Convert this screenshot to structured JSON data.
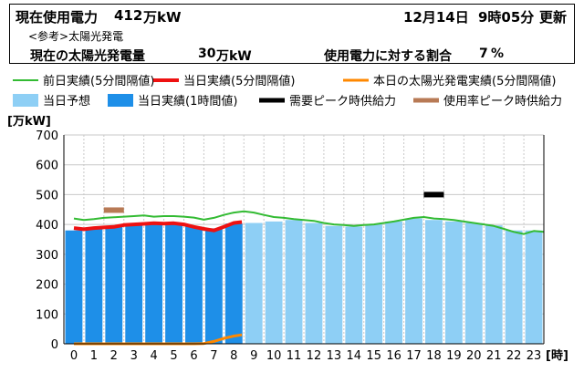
{
  "header": {
    "current_label": "現在使用電力",
    "current_value": "412",
    "current_unit": "万kW",
    "date": "12月14日",
    "time": "9時05分",
    "update_label": "更新",
    "reference_label": "<参考>太陽光発電",
    "solar_label": "現在の太陽光発電量",
    "solar_value": "30",
    "solar_unit": "万kW",
    "ratio_label": "使用電力に対する割合",
    "ratio_value": "7",
    "ratio_unit": "%"
  },
  "colors": {
    "prev_day": "#33bb33",
    "today_5min": "#ee1111",
    "solar": "#ff8800",
    "forecast": "#8ecff5",
    "today_hourly": "#1e8fe8",
    "peak_supply": "#000000",
    "usage_peak_supply": "#b87a55"
  },
  "chart_data": {
    "type": "bar",
    "xlabel": "[時]",
    "ylabel": "[万kW]",
    "ylim": [
      0,
      700
    ],
    "yticks": [
      0,
      100,
      200,
      300,
      400,
      500,
      600,
      700
    ],
    "grid": true,
    "legend_position": "top",
    "categories": [
      "0",
      "1",
      "2",
      "3",
      "4",
      "5",
      "6",
      "7",
      "8",
      "9",
      "10",
      "11",
      "12",
      "13",
      "14",
      "15",
      "16",
      "17",
      "18",
      "19",
      "20",
      "21",
      "22",
      "23"
    ],
    "series": [
      {
        "name": "当日予想",
        "kind": "bar",
        "color_key": "forecast",
        "x": [
          9,
          10,
          11,
          12,
          13,
          14,
          15,
          16,
          17,
          18,
          19,
          20,
          21,
          22,
          23
        ],
        "values": [
          405,
          410,
          415,
          405,
          395,
          393,
          400,
          410,
          420,
          415,
          410,
          405,
          397,
          380,
          380
        ]
      },
      {
        "name": "当日実績(1時間値)",
        "kind": "bar",
        "color_key": "today_hourly",
        "x": [
          0,
          1,
          2,
          3,
          4,
          5,
          6,
          7,
          8
        ],
        "values": [
          380,
          385,
          395,
          400,
          403,
          400,
          393,
          387,
          403
        ]
      },
      {
        "name": "前日実績(5分間隔値)",
        "kind": "line",
        "color_key": "prev_day",
        "x": [
          0,
          0.5,
          1,
          1.5,
          2,
          2.5,
          3,
          3.5,
          4,
          4.5,
          5,
          5.5,
          6,
          6.5,
          7,
          7.5,
          8,
          8.5,
          9,
          9.5,
          10,
          10.5,
          11,
          11.5,
          12,
          12.5,
          13,
          13.5,
          14,
          14.5,
          15,
          15.5,
          16,
          16.5,
          17,
          17.5,
          18,
          18.5,
          19,
          19.5,
          20,
          20.5,
          21,
          21.5,
          22,
          22.5,
          23,
          23.5
        ],
        "values": [
          420,
          415,
          418,
          422,
          424,
          426,
          428,
          430,
          426,
          428,
          428,
          426,
          423,
          416,
          422,
          432,
          440,
          444,
          440,
          432,
          425,
          422,
          418,
          415,
          412,
          405,
          400,
          398,
          395,
          398,
          400,
          405,
          410,
          416,
          422,
          425,
          420,
          418,
          415,
          410,
          405,
          400,
          395,
          385,
          375,
          368,
          378,
          375
        ]
      },
      {
        "name": "当日実績(5分間隔値)",
        "kind": "line",
        "color_key": "today_5min",
        "x": [
          0,
          0.5,
          1,
          1.5,
          2,
          2.5,
          3,
          3.5,
          4,
          4.5,
          5,
          5.5,
          6,
          6.5,
          7,
          7.5,
          8,
          8.4
        ],
        "values": [
          388,
          384,
          388,
          390,
          392,
          398,
          400,
          402,
          404,
          403,
          404,
          400,
          392,
          385,
          380,
          392,
          405,
          408
        ]
      },
      {
        "name": "本日の太陽光発電実績(5分間隔値)",
        "kind": "line",
        "color_key": "solar",
        "x": [
          0,
          1,
          2,
          3,
          4,
          5,
          6,
          6.5,
          7,
          7.5,
          8,
          8.4
        ],
        "values": [
          0,
          0,
          0,
          0,
          0,
          0,
          0,
          1,
          8,
          18,
          26,
          30
        ]
      },
      {
        "name": "需要ピーク時供給力",
        "kind": "marker",
        "color_key": "peak_supply",
        "x": [
          18
        ],
        "values": [
          500
        ]
      },
      {
        "name": "使用率ピーク時供給力",
        "kind": "marker",
        "color_key": "usage_peak_supply",
        "x": [
          2
        ],
        "values": [
          448
        ]
      }
    ]
  }
}
